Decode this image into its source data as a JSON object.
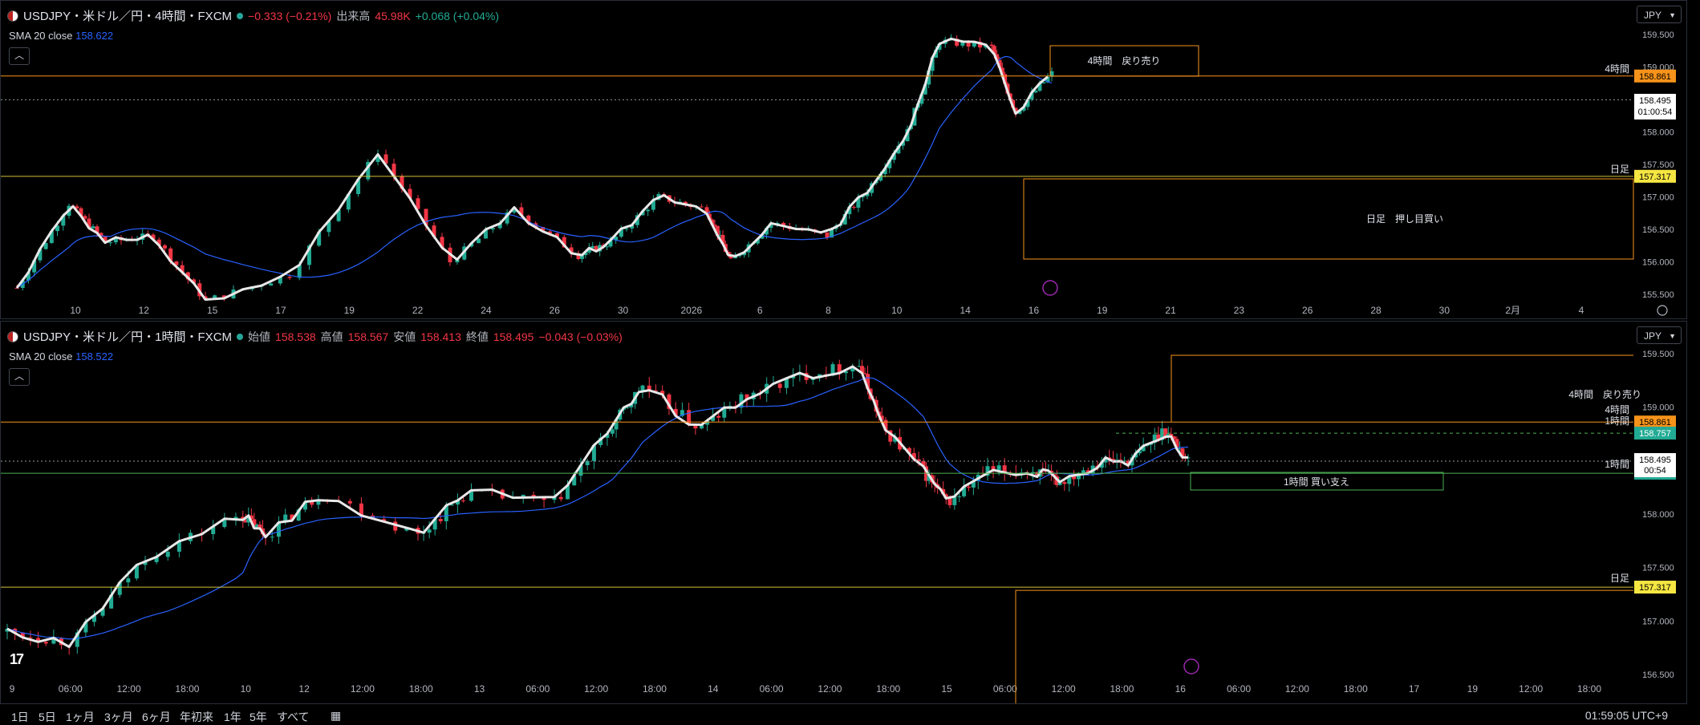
{
  "pane1": {
    "symbol": "USDJPY・米ドル／円・4時間・FXCM",
    "change": "−0.333 (−0.21%)",
    "volume_label": "出来高",
    "volume_value": "45.98K",
    "volume_change": "+0.068 (+0.04%)",
    "sma_label": "SMA 20 close",
    "sma_value": "158.622",
    "currency": "JPY",
    "price_axis": [
      "159.500",
      "159.000",
      "158.500",
      "158.000",
      "157.500",
      "157.000",
      "156.500",
      "156.000",
      "155.500"
    ],
    "time_axis": [
      "10",
      "12",
      "15",
      "17",
      "19",
      "22",
      "24",
      "26",
      "30",
      "2026",
      "6",
      "8",
      "10",
      "14",
      "16",
      "19",
      "21",
      "23",
      "26",
      "28",
      "30",
      "2月",
      "4"
    ],
    "hline_4h_label": "4時間",
    "hline_4h_price": "158.861",
    "hline_daily_label": "日足",
    "hline_daily_price": "157.317",
    "last_price": "158.495",
    "countdown": "01:00:54",
    "box_sell_label": "4時間　戻り売り",
    "box_buy_label": "日足　押し目買い",
    "colors": {
      "up": "#22ab94",
      "down": "#f23645",
      "sma": "#2962ff",
      "orange_line": "#f7931a",
      "yellow_line": "#d4c33b"
    }
  },
  "pane2": {
    "symbol": "USDJPY・米ドル／円・1時間・FXCM",
    "open_label": "始値",
    "open_value": "158.538",
    "high_label": "高値",
    "high_value": "158.567",
    "low_label": "安値",
    "low_value": "158.413",
    "close_label": "終値",
    "close_value": "158.495",
    "close_change": "−0.043 (−0.03%)",
    "sma_label": "SMA 20 close",
    "sma_value": "158.522",
    "currency": "JPY",
    "price_axis": [
      "159.500",
      "159.000",
      "158.500",
      "158.000",
      "157.500",
      "157.000",
      "156.500"
    ],
    "time_axis": [
      "9",
      "06:00",
      "12:00",
      "18:00",
      "10",
      "12",
      "12:00",
      "18:00",
      "13",
      "06:00",
      "12:00",
      "18:00",
      "14",
      "06:00",
      "12:00",
      "18:00",
      "15",
      "06:00",
      "12:00",
      "18:00",
      "16",
      "06:00",
      "12:00",
      "18:00",
      "17",
      "19",
      "12:00",
      "18:00"
    ],
    "hline_4h_label": "4時間",
    "hline_4h_price": "158.861",
    "hline_1h_label": "1時間",
    "hline_1h_price": "158.757",
    "hline_1h_support_label": "1時間",
    "hline_1h_support_price": "158.382",
    "hline_daily_label": "日足",
    "hline_daily_price": "157.317",
    "last_price": "158.495",
    "countdown": "00:54",
    "box_sell_label": "4時間　戻り売り",
    "box_support_label": "1時間 買い支え"
  },
  "bottom": {
    "ranges": [
      "1日",
      "5日",
      "1ヶ月",
      "3ヶ月",
      "6ヶ月",
      "年初来",
      "1年",
      "5年",
      "すべて"
    ],
    "clock": "01:59:05 UTC+9"
  }
}
